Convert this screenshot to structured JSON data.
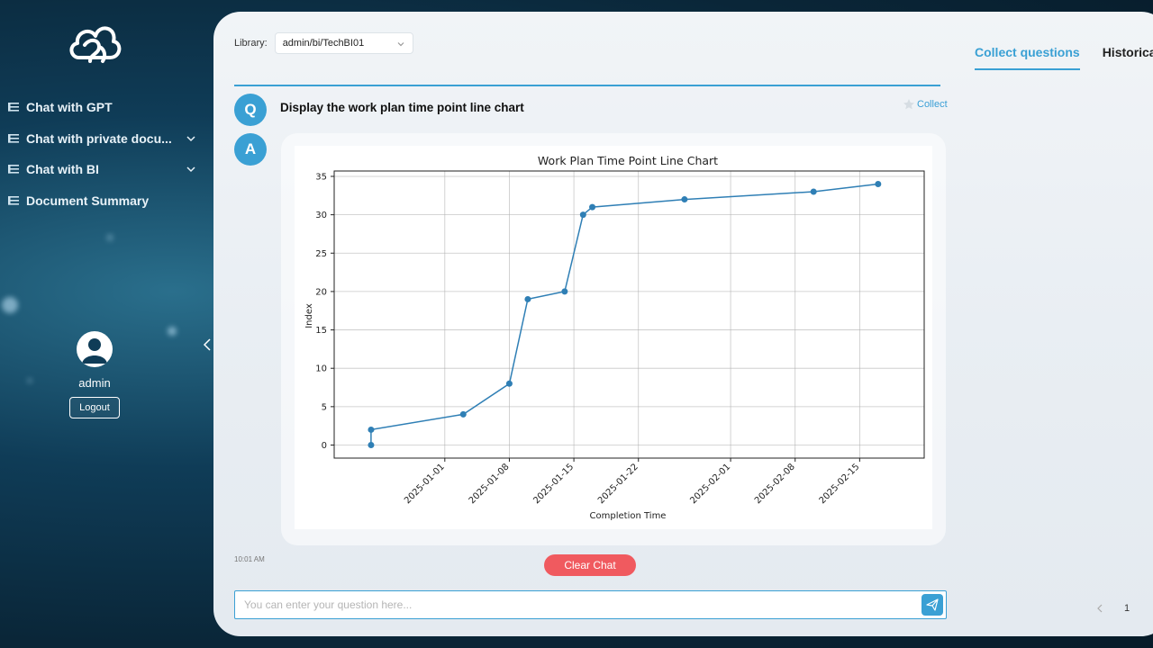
{
  "sidebar": {
    "items": [
      {
        "label": "Chat with GPT",
        "has_dropdown": false
      },
      {
        "label": "Chat with private docu...",
        "has_dropdown": true
      },
      {
        "label": "Chat with BI",
        "has_dropdown": true
      },
      {
        "label": "Document Summary",
        "has_dropdown": false
      }
    ],
    "user": {
      "name": "admin",
      "logout_label": "Logout"
    }
  },
  "library": {
    "label": "Library:",
    "value": "admin/bi/TechBI01"
  },
  "conversation": {
    "q_badge": "Q",
    "a_badge": "A",
    "question": "Display the work plan time point line chart",
    "collect_label": "Collect",
    "timestamp": "10:01 AM"
  },
  "chart_data": {
    "type": "line",
    "title": "Work Plan Time Point Line Chart",
    "xlabel": "Completion Time",
    "ylabel": "Index",
    "x": [
      "2024-12-24",
      "2024-12-24",
      "2025-01-03",
      "2025-01-08",
      "2025-01-10",
      "2025-01-14",
      "2025-01-16",
      "2025-01-17",
      "2025-01-27",
      "2025-02-10",
      "2025-02-17"
    ],
    "y": [
      0,
      2,
      4,
      8,
      19,
      20,
      30,
      31,
      32,
      33,
      34
    ],
    "xticks": [
      "2025-01-01",
      "2025-01-08",
      "2025-01-15",
      "2025-01-22",
      "2025-02-01",
      "2025-02-08",
      "2025-02-15"
    ],
    "yticks": [
      0,
      5,
      10,
      15,
      20,
      25,
      30,
      35
    ],
    "ylim": [
      -1.7,
      35.7
    ],
    "xlim": [
      "2024-12-20",
      "2025-02-22"
    ],
    "grid": true,
    "color": "#2f7fb5"
  },
  "actions": {
    "clear_label": "Clear Chat"
  },
  "input": {
    "placeholder": "You can enter your question here..."
  },
  "right_panel": {
    "tabs": [
      {
        "label": "Collect questions",
        "active": true
      },
      {
        "label": "Historical",
        "active": false
      }
    ],
    "page": "1"
  },
  "colors": {
    "accent": "#3aa0d4",
    "danger": "#f05a5f"
  }
}
